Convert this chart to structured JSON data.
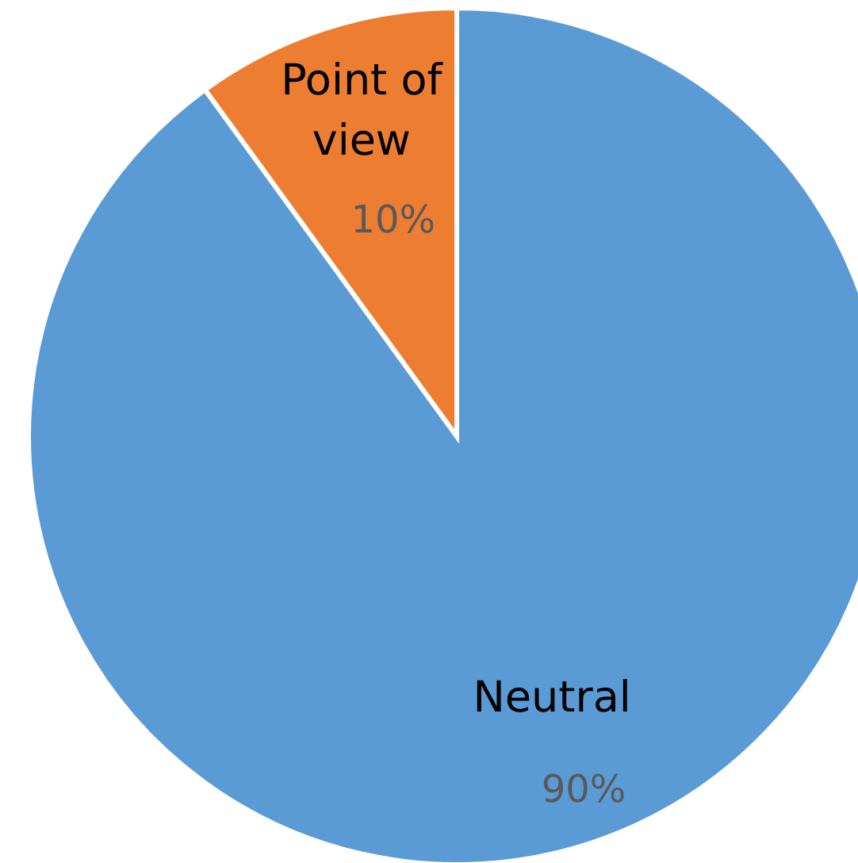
{
  "chart_data": {
    "type": "pie",
    "categories": [
      "Neutral",
      "Point of view"
    ],
    "values": [
      90,
      10
    ],
    "colors": [
      "#5b9bd5",
      "#ed7d31"
    ],
    "value_labels": [
      "90%",
      "10%"
    ]
  }
}
